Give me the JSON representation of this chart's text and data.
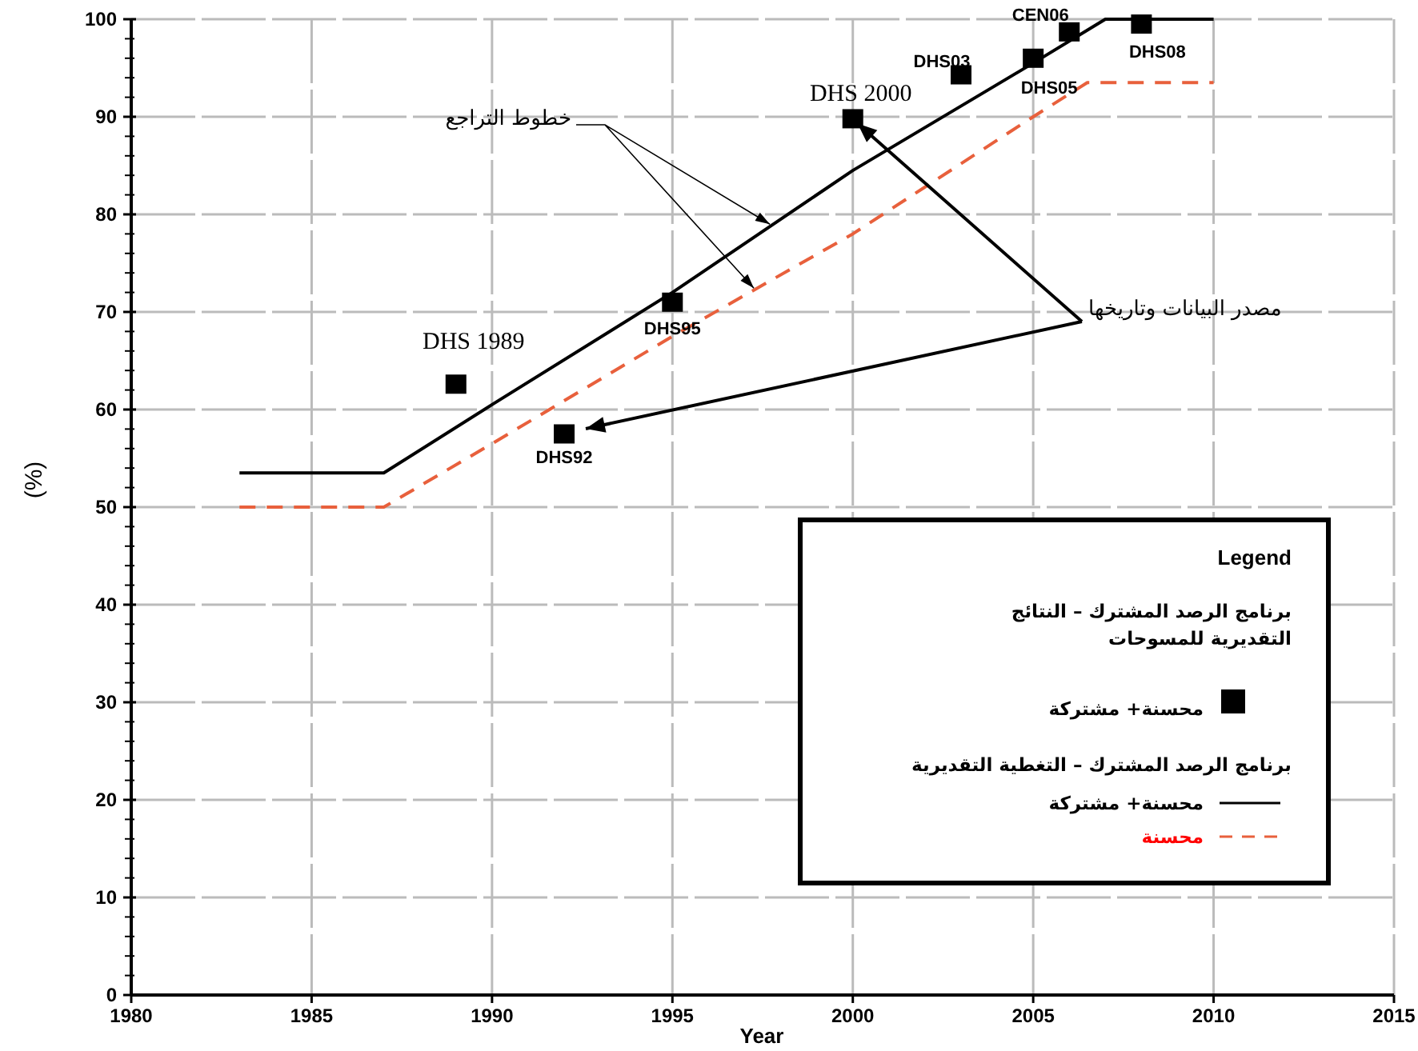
{
  "chart_data": {
    "type": "line",
    "xlabel": "Year",
    "ylabel": "(%)",
    "legend_title": "Legend",
    "legend": "bottom right",
    "grid": true,
    "xlim": [
      1980,
      2015
    ],
    "ylim": [
      0,
      100
    ],
    "xticks": [
      1980,
      1985,
      1990,
      1995,
      2000,
      2005,
      2010,
      2015
    ],
    "yticks": [
      0,
      10,
      20,
      30,
      40,
      50,
      60,
      70,
      80,
      90,
      100
    ],
    "series": [
      {
        "name": "محسنة+ مشتركة",
        "type": "scatter",
        "marker": "square",
        "color": "#000000",
        "x": [
          1989,
          1992,
          1995,
          2000,
          2003,
          2005,
          2006,
          2008
        ],
        "values": [
          62.6,
          57.5,
          71,
          89.8,
          94.3,
          96,
          98.7,
          99.5
        ]
      },
      {
        "name": "محسنة+ مشتركة",
        "marker": "none",
        "line_style": "solid",
        "color": "#000000",
        "x": [
          1983,
          1987,
          1990,
          1995,
          2000,
          2005,
          2007,
          2010
        ],
        "values": [
          53.5,
          53.5,
          60.5,
          72,
          84.5,
          95.5,
          100,
          100
        ]
      },
      {
        "name": "محسنة",
        "marker": "none",
        "line_style": "dashed",
        "color": "#e8603c",
        "x": [
          1983,
          1987,
          1990,
          1995,
          2000,
          2005,
          2006.5,
          2010
        ],
        "values": [
          50,
          50,
          56.5,
          67.5,
          78,
          90,
          93.5,
          93.5
        ]
      }
    ],
    "annotations": [
      {
        "text": "خطوط التراجع",
        "x": 1997.7,
        "y": 79
      },
      {
        "text": "مصدر البيانات وتاريخها",
        "x": 2000,
        "y": 89.8
      },
      "برنامج الرصد المشترك – النتائج التقديرية للمسوحات",
      "برنامج الرصد المشترك – التغطية التقديرية",
      {
        "text": "DHS 1989",
        "x": 1989,
        "y": 62.6
      },
      {
        "text": "DHS92",
        "x": 1992,
        "y": 57.5
      },
      {
        "text": "DHS95",
        "x": 1995,
        "y": 71
      },
      {
        "text": "DHS 2000",
        "x": 2000,
        "y": 89.8
      },
      {
        "text": "DHS03",
        "x": 2003,
        "y": 94.3
      },
      {
        "text": "DHS05",
        "x": 2005,
        "y": 96
      },
      {
        "text": "CEN06",
        "x": 2006,
        "y": 98.7
      },
      {
        "text": "DHS08",
        "x": 2008,
        "y": 99.5
      }
    ]
  }
}
